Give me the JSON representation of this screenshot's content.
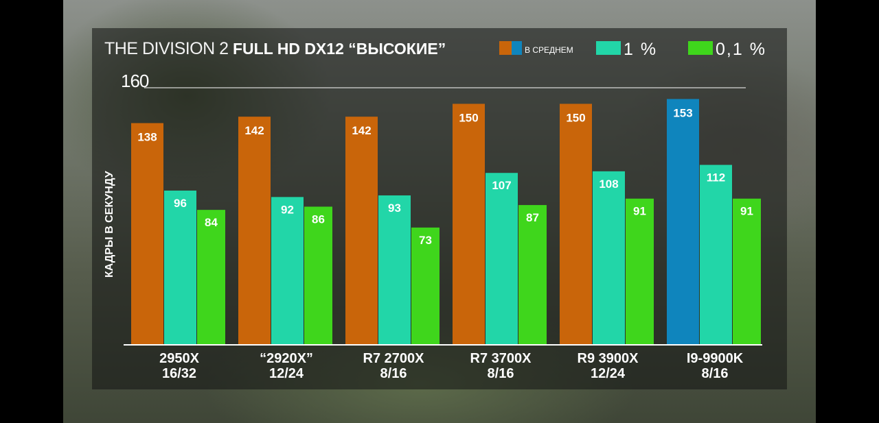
{
  "chart_data": {
    "type": "bar",
    "title": "THE DIVISION 2 FULL HD  DX12 “ВЫСОКИЕ”",
    "title_parts": {
      "light": "THE DIVISION 2 ",
      "bold": "FULL HD  DX12 “ВЫСОКИЕ”"
    },
    "ylabel": "КАДРЫ В СЕКУНДУ",
    "ymax_label": "160",
    "ylim": [
      0,
      160
    ],
    "grid": false,
    "legend_position": "top-right",
    "categories": [
      [
        "2950X",
        "16/32"
      ],
      [
        "“2920X”",
        "12/24"
      ],
      [
        "R7 2700X",
        "8/16"
      ],
      [
        "R7 3700X",
        "8/16"
      ],
      [
        "R9 3900X",
        "12/24"
      ],
      [
        "I9-9900K",
        "8/16"
      ]
    ],
    "series": [
      {
        "name": "В СРЕДНЕМ",
        "values": [
          138,
          142,
          142,
          150,
          150,
          153
        ],
        "color": "#c9650a",
        "highlight_color": "#0f85bd",
        "highlight_index": 5
      },
      {
        "name": "1 %",
        "values": [
          96,
          92,
          93,
          107,
          108,
          112
        ],
        "color": "#22d6a8"
      },
      {
        "name": "0,1 %",
        "values": [
          84,
          86,
          73,
          87,
          91,
          91
        ],
        "color": "#3fd61c"
      }
    ]
  }
}
